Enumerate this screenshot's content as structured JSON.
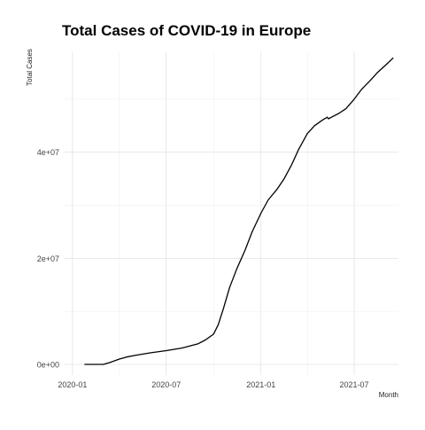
{
  "chart_data": {
    "type": "line",
    "title": "Total Cases of COVID-19 in Europe",
    "xlabel": "Month",
    "ylabel": "Total Cases",
    "x_ticks": [
      {
        "date": "2020-01-01",
        "label": "2020-01"
      },
      {
        "date": "2020-07-01",
        "label": "2020-07"
      },
      {
        "date": "2021-01-01",
        "label": "2021-01"
      },
      {
        "date": "2021-07-01",
        "label": "2021-07"
      }
    ],
    "y_ticks": [
      {
        "value": 0,
        "label": "0e+00"
      },
      {
        "value": 20000000,
        "label": "2e+07"
      },
      {
        "value": 40000000,
        "label": "4e+07"
      }
    ],
    "xlim": [
      "2019-12-15",
      "2021-09-25"
    ],
    "ylim": [
      -2000000,
      59000000
    ],
    "grid": true,
    "legend": "none",
    "line_color": "#000000",
    "series": [
      {
        "x": [
          "2020-01-24",
          "2020-02-15",
          "2020-03-01",
          "2020-03-15",
          "2020-04-01",
          "2020-04-15",
          "2020-05-01",
          "2020-06-01",
          "2020-07-01",
          "2020-08-01",
          "2020-09-01",
          "2020-09-15",
          "2020-10-01",
          "2020-10-10",
          "2020-10-20",
          "2020-11-01",
          "2020-11-15",
          "2020-12-01",
          "2020-12-15",
          "2021-01-01",
          "2021-01-15",
          "2021-02-01",
          "2021-02-15",
          "2021-03-01",
          "2021-03-15",
          "2021-04-01",
          "2021-04-15",
          "2021-05-01",
          "2021-05-10",
          "2021-05-12",
          "2021-05-20",
          "2021-06-01",
          "2021-06-15",
          "2021-07-01",
          "2021-07-15",
          "2021-08-01",
          "2021-08-15",
          "2021-09-01",
          "2021-09-15"
        ],
        "y": [
          0,
          0,
          0,
          400000,
          1000000,
          1400000,
          1700000,
          2200000,
          2600000,
          3100000,
          3900000,
          4600000,
          5700000,
          7500000,
          10500000,
          14500000,
          18000000,
          21500000,
          25000000,
          28500000,
          31000000,
          33000000,
          35000000,
          37500000,
          40500000,
          43500000,
          45000000,
          46100000,
          46600000,
          46300000,
          46700000,
          47300000,
          48200000,
          50000000,
          51800000,
          53500000,
          55000000,
          56500000,
          57800000
        ]
      }
    ]
  }
}
